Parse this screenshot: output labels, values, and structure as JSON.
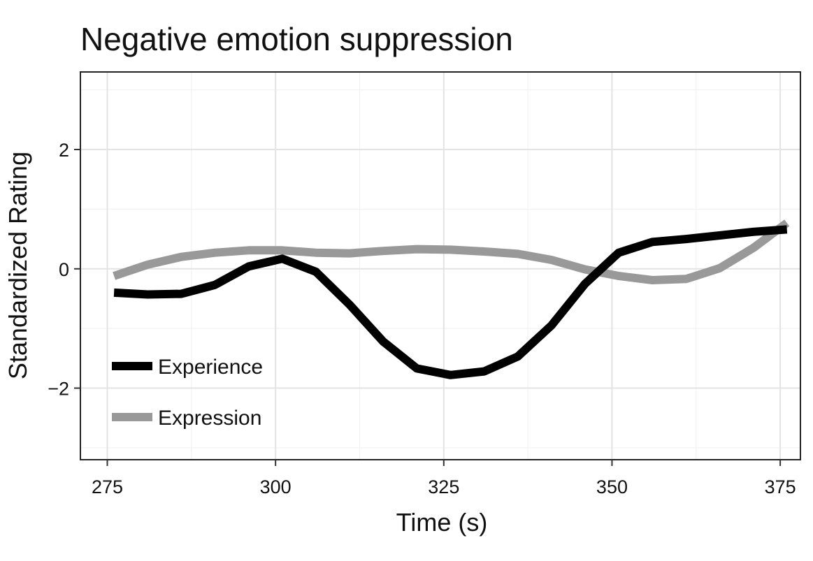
{
  "chart_data": {
    "type": "line",
    "title": "Negative emotion suppression",
    "xlabel": "Time (s)",
    "ylabel": "Standardized Rating",
    "xlim": [
      271,
      378
    ],
    "ylim": [
      -3.2,
      3.3
    ],
    "xticks": [
      275,
      300,
      325,
      350,
      375
    ],
    "xtick_labels": [
      "275",
      "300",
      "325",
      "350",
      "375"
    ],
    "yticks": [
      -2,
      0,
      2
    ],
    "ytick_labels": [
      "−2",
      "0",
      "2"
    ],
    "grid": true,
    "legend_position": "bottom-left",
    "series": [
      {
        "name": "Experience",
        "color": "#000000",
        "x": [
          276,
          281,
          286,
          291,
          296,
          301,
          306,
          311,
          316,
          321,
          326,
          331,
          336,
          341,
          346,
          351,
          356,
          361,
          366,
          371,
          376
        ],
        "y": [
          -0.4,
          -0.43,
          -0.42,
          -0.27,
          0.04,
          0.17,
          -0.05,
          -0.6,
          -1.22,
          -1.67,
          -1.78,
          -1.72,
          -1.47,
          -0.95,
          -0.25,
          0.27,
          0.45,
          0.5,
          0.56,
          0.62,
          0.66
        ]
      },
      {
        "name": "Expression",
        "color": "#999999",
        "x": [
          276,
          281,
          286,
          291,
          296,
          301,
          306,
          311,
          316,
          321,
          326,
          331,
          336,
          341,
          346,
          351,
          356,
          361,
          366,
          371,
          376
        ],
        "y": [
          -0.12,
          0.07,
          0.2,
          0.27,
          0.31,
          0.31,
          0.27,
          0.26,
          0.3,
          0.33,
          0.32,
          0.29,
          0.25,
          0.15,
          -0.01,
          -0.12,
          -0.19,
          -0.17,
          0.01,
          0.35,
          0.77
        ]
      }
    ]
  }
}
